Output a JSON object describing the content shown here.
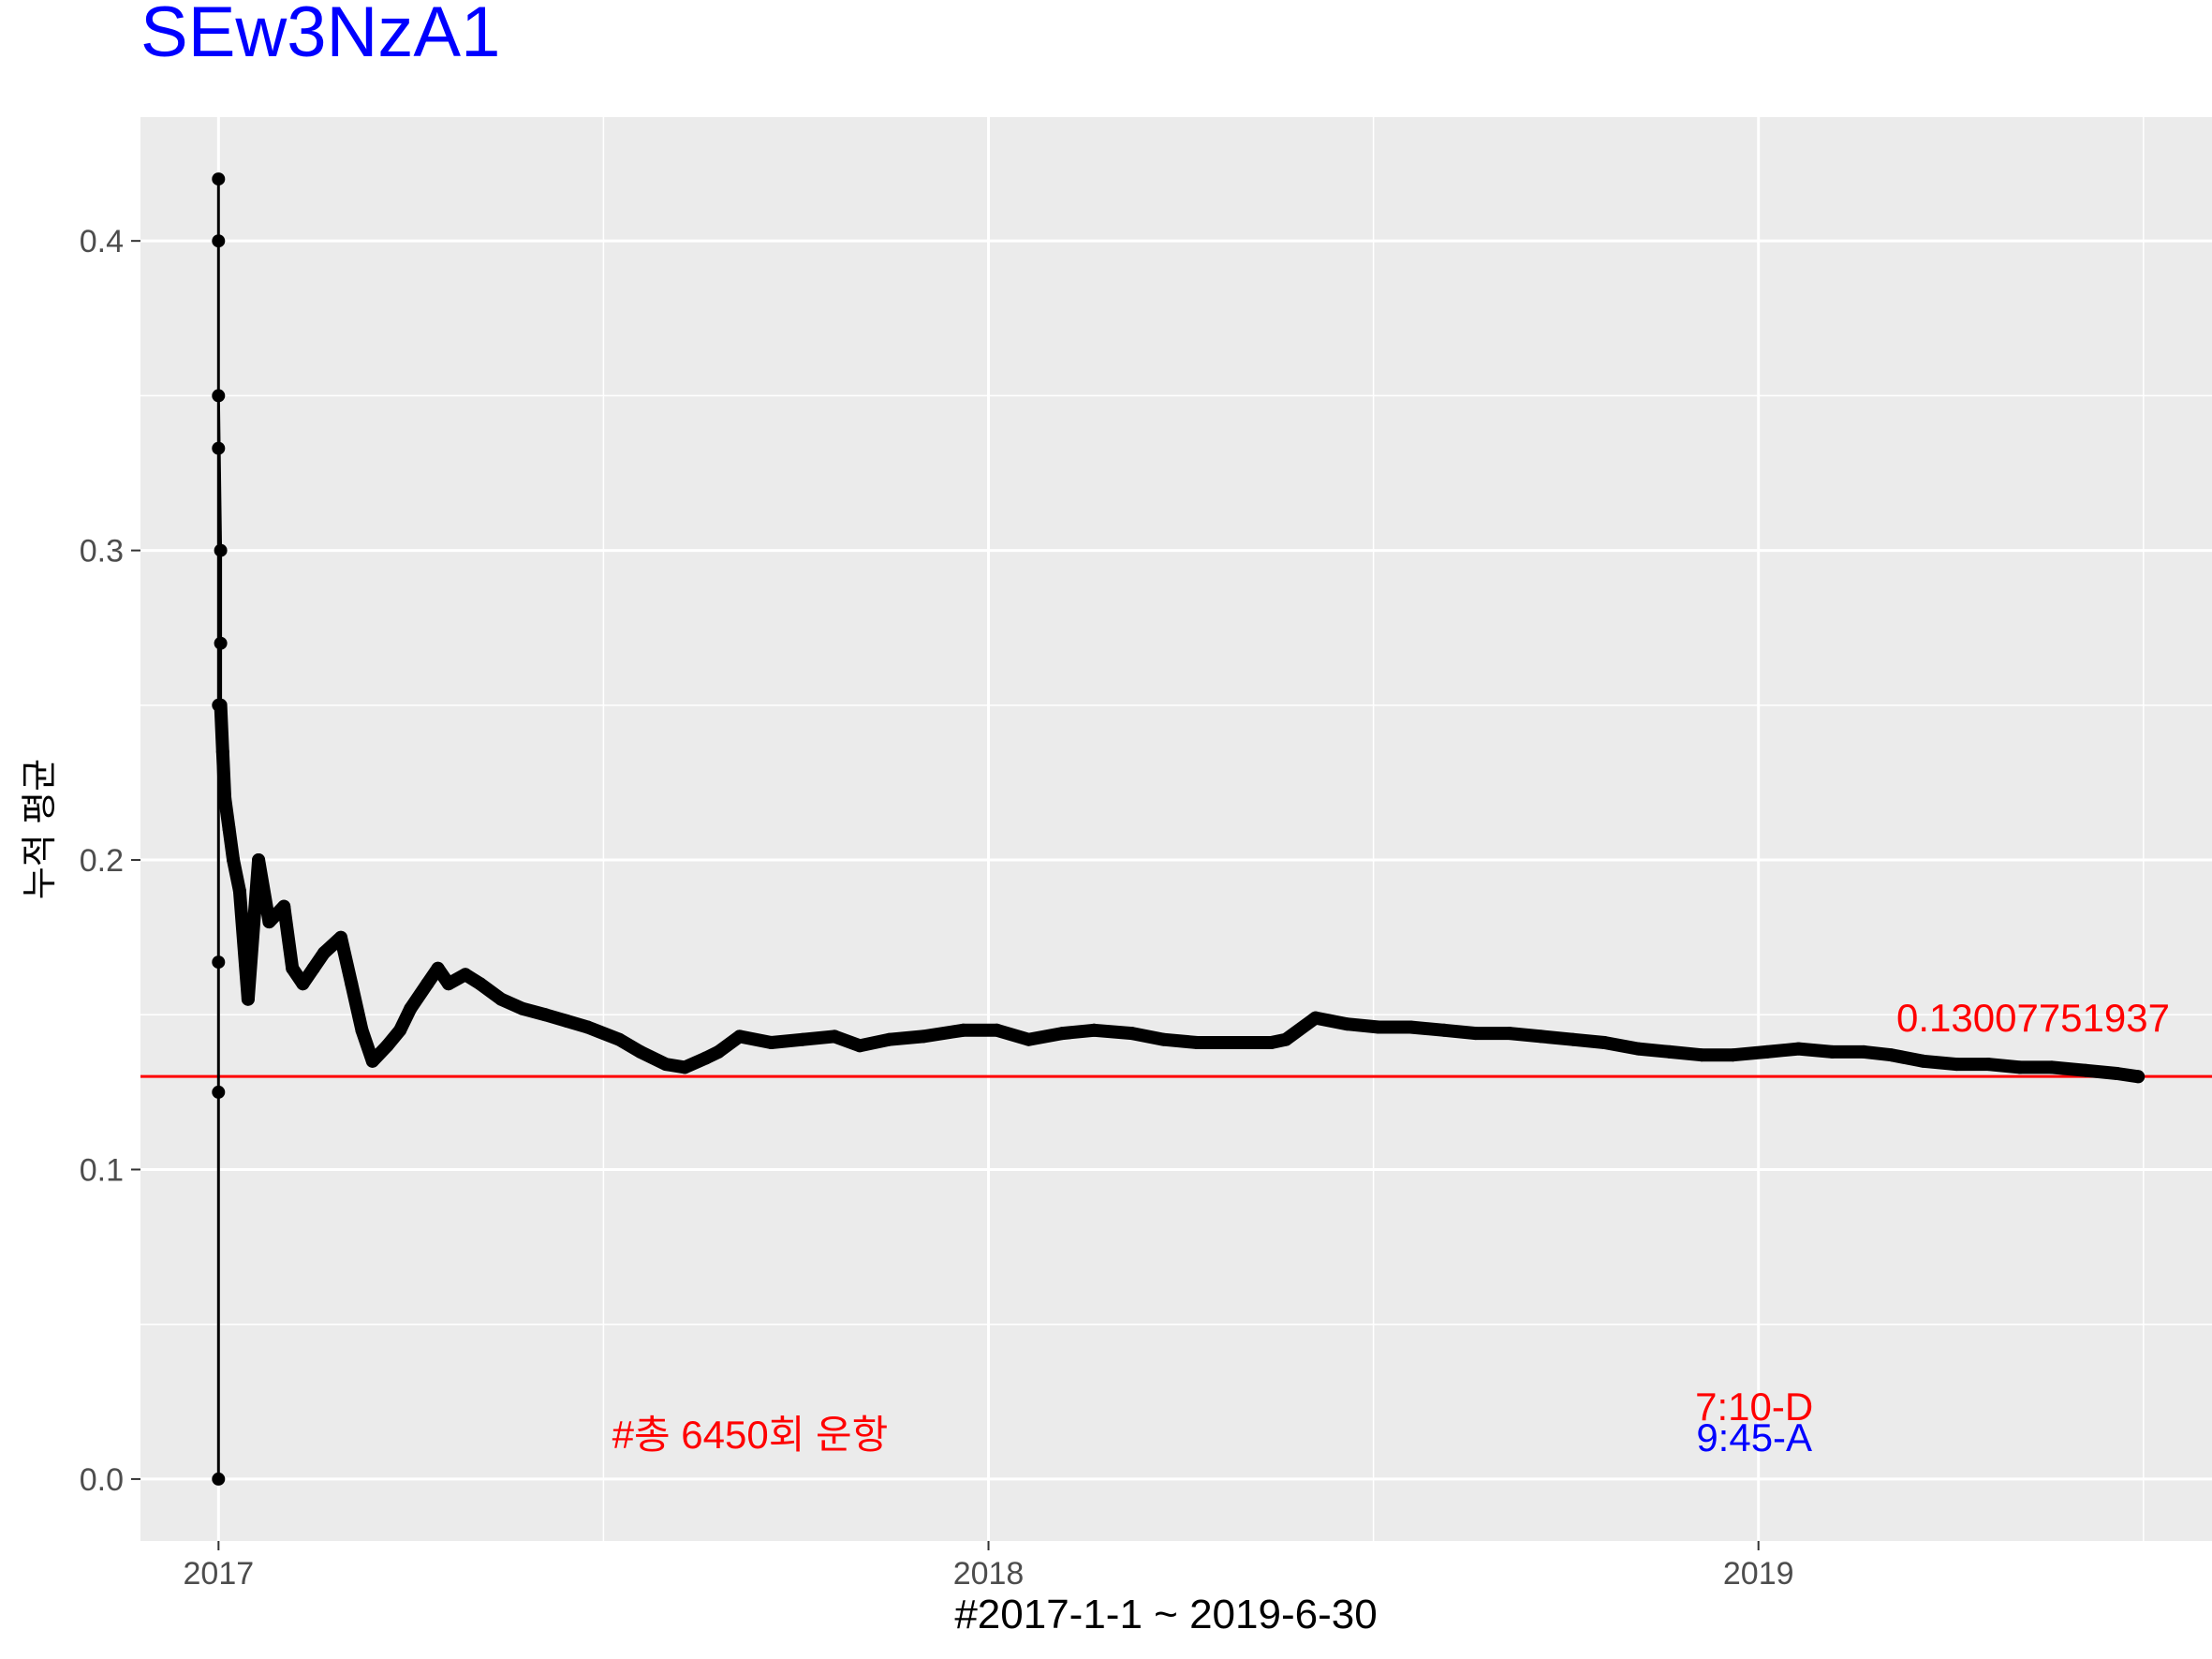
{
  "chart_data": {
    "type": "line",
    "title": "SEw3NzA1",
    "xlabel": "#2017-1-1 ~ 2019-6-30",
    "ylabel": "누적 평균",
    "x_ticks": [
      "2017",
      "2018",
      "2019"
    ],
    "y_ticks": [
      "0.0",
      "0.1",
      "0.2",
      "0.3",
      "0.4"
    ],
    "xlim": [
      "2016-11-25",
      "2019-08-04"
    ],
    "ylim": [
      -0.02,
      0.44
    ],
    "grid": true,
    "series": [
      {
        "x": [
          "2017-01-01",
          "2017-01-01",
          "2017-01-01",
          "2017-01-01",
          "2017-01-01",
          "2017-01-01",
          "2017-01-01",
          "2017-01-01",
          "2017-01-02",
          "2017-01-02",
          "2017-01-02",
          "2017-01-03",
          "2017-01-04",
          "2017-01-06",
          "2017-01-08",
          "2017-01-11",
          "2017-01-15",
          "2017-01-20",
          "2017-01-25",
          "2017-02-01",
          "2017-02-05",
          "2017-02-10",
          "2017-02-15",
          "2017-02-20",
          "2017-02-28",
          "2017-03-05",
          "2017-03-10",
          "2017-03-15",
          "2017-03-22",
          "2017-03-28",
          "2017-04-02",
          "2017-04-10",
          "2017-04-15",
          "2017-04-20",
          "2017-04-28",
          "2017-05-05",
          "2017-05-15",
          "2017-05-25",
          "2017-06-05",
          "2017-06-15",
          "2017-06-25",
          "2017-07-10",
          "2017-07-20",
          "2017-08-01",
          "2017-08-10",
          "2017-08-20",
          "2017-08-26",
          "2017-09-05",
          "2017-09-20",
          "2017-10-05",
          "2017-10-20",
          "2017-11-01",
          "2017-11-15",
          "2017-12-01",
          "2017-12-20",
          "2018-01-05",
          "2018-01-20",
          "2018-02-05",
          "2018-02-20",
          "2018-03-10",
          "2018-03-25",
          "2018-04-10",
          "2018-04-25",
          "2018-05-15",
          "2018-05-22",
          "2018-06-05",
          "2018-06-20",
          "2018-07-05",
          "2018-07-20",
          "2018-08-05",
          "2018-08-20",
          "2018-09-05",
          "2018-09-20",
          "2018-10-05",
          "2018-10-20",
          "2018-11-05",
          "2018-11-20",
          "2018-12-05",
          "2018-12-20",
          "2019-01-05",
          "2019-01-20",
          "2019-02-05",
          "2019-02-20",
          "2019-03-05",
          "2019-03-20",
          "2019-04-05",
          "2019-04-20",
          "2019-05-05",
          "2019-05-20",
          "2019-06-05",
          "2019-06-20",
          "2019-06-30"
        ],
        "y": [
          0.0,
          0.125,
          0.167,
          0.25,
          0.333,
          0.4,
          0.42,
          0.35,
          0.3,
          0.27,
          0.25,
          0.235,
          0.22,
          0.21,
          0.2,
          0.19,
          0.155,
          0.2,
          0.18,
          0.185,
          0.165,
          0.16,
          0.165,
          0.17,
          0.175,
          0.16,
          0.145,
          0.135,
          0.14,
          0.145,
          0.152,
          0.16,
          0.165,
          0.16,
          0.163,
          0.16,
          0.155,
          0.152,
          0.15,
          0.148,
          0.146,
          0.142,
          0.138,
          0.134,
          0.133,
          0.136,
          0.138,
          0.143,
          0.141,
          0.142,
          0.143,
          0.14,
          0.142,
          0.143,
          0.145,
          0.145,
          0.142,
          0.144,
          0.145,
          0.144,
          0.142,
          0.141,
          0.141,
          0.141,
          0.142,
          0.149,
          0.147,
          0.146,
          0.146,
          0.145,
          0.144,
          0.144,
          0.143,
          0.142,
          0.141,
          0.139,
          0.138,
          0.137,
          0.137,
          0.138,
          0.139,
          0.138,
          0.138,
          0.137,
          0.135,
          0.134,
          0.134,
          0.133,
          0.133,
          0.132,
          0.131,
          0.13
        ]
      }
    ],
    "reference_line": {
      "y": 0.13007751937,
      "label": "0.13007751937",
      "color": "#ff0000"
    },
    "annotations": [
      {
        "text": "#총 6450회 운항",
        "x": "2017-09-10",
        "y": 0.01,
        "color": "#ff0000"
      },
      {
        "text": "7:10-D",
        "x": "2018-12-30",
        "y": 0.019,
        "color": "#ff0000"
      },
      {
        "text": "9:45-A",
        "x": "2018-12-30",
        "y": 0.009,
        "color": "#0000ff"
      }
    ],
    "colors": {
      "title": "#0000ff",
      "panel": "#ebebeb",
      "grid": "#ffffff",
      "series": "#000000",
      "reference": "#ff0000"
    }
  }
}
